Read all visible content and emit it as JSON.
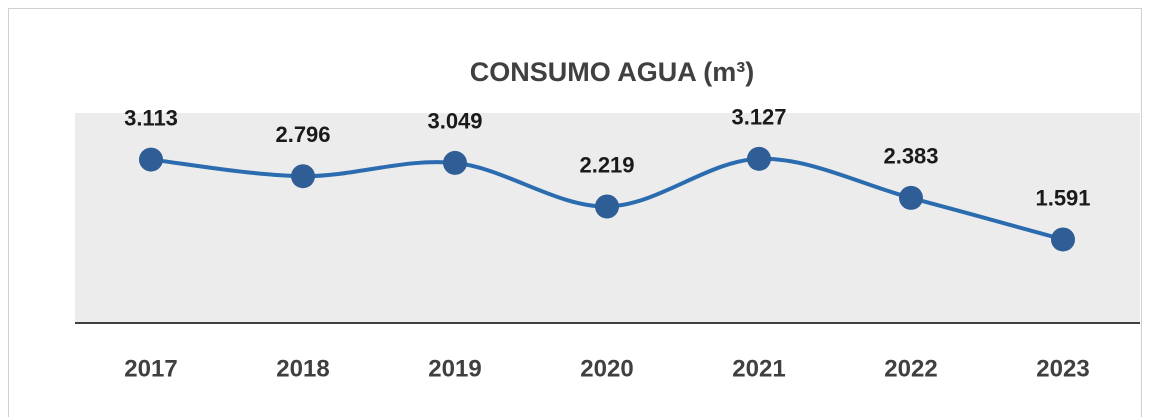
{
  "chart_data": {
    "type": "line",
    "title": "CONSUMO AGUA (m³)",
    "categories": [
      "2017",
      "2018",
      "2019",
      "2020",
      "2021",
      "2022",
      "2023"
    ],
    "series": [
      {
        "name": "Consumo agua",
        "color": "#2b6cb0",
        "marker_color": "#2f5d96",
        "values": [
          3113,
          2796,
          3049,
          2219,
          3127,
          2383,
          1591
        ],
        "value_labels": [
          "3.113",
          "2.796",
          "3.049",
          "2.219",
          "3.127",
          "2.383",
          "1.591"
        ]
      }
    ],
    "ylim": [
      0,
      4000
    ]
  }
}
